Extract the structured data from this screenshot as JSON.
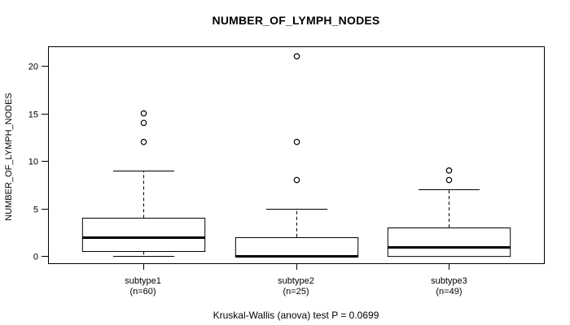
{
  "title": "NUMBER_OF_LYMPH_NODES",
  "caption": "Kruskal-Wallis (anova) test P = 0.0699",
  "chart_data": {
    "type": "boxplot",
    "title": "NUMBER_OF_LYMPH_NODES",
    "ylabel": "NUMBER_OF_LYMPH_NODES",
    "xlabel": "",
    "annotation": "Kruskal-Wallis (anova) test P = 0.0699",
    "grid": false,
    "legend": "none",
    "yticks": [
      0,
      5,
      10,
      15,
      20
    ],
    "ylim": [
      -0.75,
      22.05
    ],
    "xlim": [
      0.38,
      3.62
    ],
    "box_width": 0.8,
    "series": [
      {
        "label": "subtype1",
        "sublabel": "(n=60)",
        "n": 60,
        "position": 1,
        "whisker_low": 0,
        "q1": 0.5,
        "median": 2,
        "q3": 4,
        "whisker_high": 9,
        "outliers": [
          12,
          14,
          15
        ],
        "min": 0,
        "max": 15
      },
      {
        "label": "subtype2",
        "sublabel": "(n=25)",
        "n": 25,
        "position": 2,
        "whisker_low": 0,
        "q1": 0,
        "median": 0,
        "q3": 2,
        "whisker_high": 5,
        "outliers": [
          8,
          12,
          21
        ],
        "min": 0,
        "max": 21
      },
      {
        "label": "subtype3",
        "sublabel": "(n=49)",
        "n": 49,
        "position": 3,
        "whisker_low": 0,
        "q1": 0,
        "median": 1,
        "q3": 3,
        "whisker_high": 7,
        "outliers": [
          8,
          9
        ],
        "min": 0,
        "max": 9
      }
    ],
    "colors": {
      "stroke": "#000000",
      "box_fill": "#ffffff",
      "background": "#ffffff"
    }
  }
}
